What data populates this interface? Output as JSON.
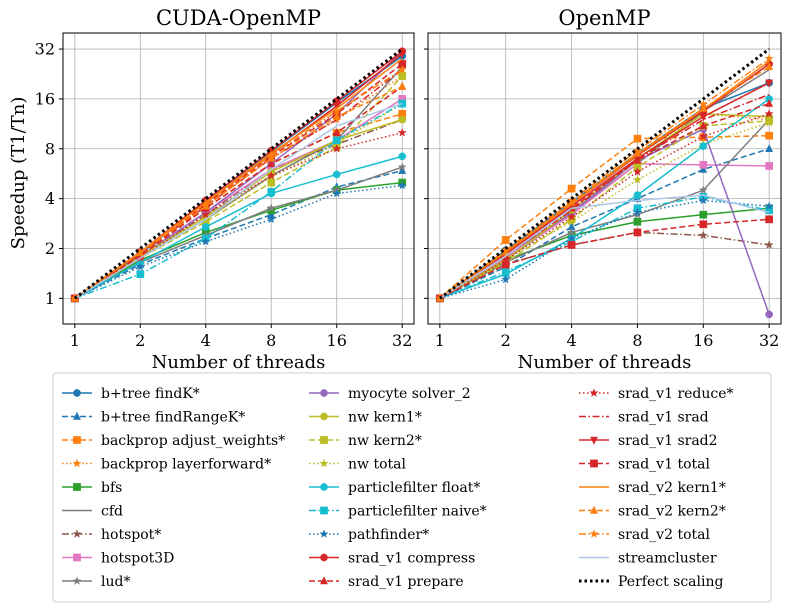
{
  "chart_data": {
    "type": "line",
    "x": [
      1,
      2,
      4,
      8,
      16,
      32
    ],
    "xscale": "log2",
    "yscale": "log2",
    "xticks": [
      "1",
      "2",
      "4",
      "8",
      "16",
      "32"
    ],
    "yticks": [
      "1",
      "2",
      "4",
      "8",
      "16",
      "32"
    ],
    "ylim": [
      0.7,
      40
    ],
    "xlabel": "Number of threads",
    "ylabel": "Speedup (T1/Tn)",
    "grid": true,
    "legend_position": "bottom",
    "panels": [
      {
        "title": "CUDA-OpenMP"
      },
      {
        "title": "OpenMP"
      }
    ],
    "series": [
      {
        "name": "b+tree findK*",
        "color": "#1f77b4",
        "dash": "solid",
        "marker": "circle",
        "values": [
          [
            1,
            1.85,
            3.9,
            7.7,
            15.2,
            29
          ],
          [
            1,
            1.95,
            3.8,
            7.5,
            14,
            20
          ]
        ]
      },
      {
        "name": "b+tree findRangeK*",
        "color": "#1f77b4",
        "dash": "dashed",
        "marker": "triangle-up",
        "values": [
          [
            1,
            1.6,
            2.3,
            3.2,
            4.7,
            5.9
          ],
          [
            1,
            1.55,
            2.7,
            4,
            6,
            8
          ]
        ]
      },
      {
        "name": "backprop adjust_weights*",
        "color": "#ff7f0e",
        "dash": "dashed",
        "marker": "square",
        "values": [
          [
            1,
            1.85,
            3.5,
            6.5,
            10,
            13
          ],
          [
            1,
            2.25,
            4.6,
            9.2,
            9.4,
            9.6
          ]
        ]
      },
      {
        "name": "backprop layerforward*",
        "color": "#ff7f0e",
        "dash": "dotted",
        "marker": "star",
        "values": [
          [
            1,
            1.9,
            3.6,
            7,
            12,
            22
          ],
          [
            1,
            1.9,
            3.7,
            7.5,
            13,
            12
          ]
        ]
      },
      {
        "name": "bfs",
        "color": "#2ca02c",
        "dash": "solid",
        "marker": "square",
        "values": [
          [
            1,
            1.7,
            2.5,
            3.4,
            4.5,
            5
          ]
        ],
        "values_openmp": [
          1,
          1.7,
          2.4,
          2.9,
          3.2,
          3.5
        ]
      },
      {
        "name": "cfd",
        "color": "#7f7f7f",
        "dash": "solid",
        "marker": "none",
        "values": [
          [
            1,
            1.75,
            3,
            5.5,
            9,
            25
          ],
          [
            1,
            1.7,
            3.3,
            6.5,
            13.5,
            24
          ]
        ]
      },
      {
        "name": "hotspot*",
        "color": "#8c564b",
        "dash": "dashdot",
        "marker": "star",
        "values": [
          [
            1,
            1.8,
            3.2,
            6,
            8.5,
            12
          ],
          [
            1,
            1.6,
            2.1,
            2.5,
            2.4,
            2.1
          ]
        ]
      },
      {
        "name": "hotspot3D",
        "color": "#e377c2",
        "dash": "solid",
        "marker": "square",
        "values": [
          [
            1,
            1.8,
            3.3,
            6,
            9,
            16
          ],
          [
            1,
            1.75,
            3.2,
            6.5,
            6.4,
            6.3
          ]
        ]
      },
      {
        "name": "lud*",
        "color": "#7f7f7f",
        "dash": "solid",
        "marker": "star",
        "values": [
          [
            1,
            1.65,
            2.4,
            3.5,
            4.5,
            6.2
          ],
          [
            1,
            1.65,
            2.5,
            3.2,
            4.5,
            12
          ]
        ]
      },
      {
        "name": "myocyte solver_2",
        "color": "#9467bd",
        "dash": "solid",
        "marker": "circle",
        "values": [
          [
            1,
            1.8,
            3.3,
            6.5,
            13,
            31
          ],
          [
            1,
            1.8,
            3.3,
            6.8,
            10.5,
            0.8
          ]
        ]
      },
      {
        "name": "nw kern1*",
        "color": "#bcbd22",
        "dash": "solid",
        "marker": "circle",
        "values": [
          [
            1,
            1.8,
            3.1,
            5.8,
            9,
            12
          ],
          [
            1,
            1.7,
            3.4,
            7,
            13,
            12.5
          ]
        ]
      },
      {
        "name": "nw kern2*",
        "color": "#bcbd22",
        "dash": "dashed",
        "marker": "square",
        "values": [
          [
            1,
            1.75,
            2.9,
            5,
            8.2,
            22
          ],
          [
            1,
            1.65,
            3,
            6.2,
            11,
            11.8
          ]
        ]
      },
      {
        "name": "nw total",
        "color": "#bcbd22",
        "dash": "dotted",
        "marker": "star",
        "values": [
          [
            1,
            1.78,
            3.0,
            5.4,
            8.6,
            15
          ],
          [
            1,
            1.75,
            2.9,
            5.2,
            8.5,
            11.5
          ]
        ]
      },
      {
        "name": "particlefilter float*",
        "color": "#17becf",
        "dash": "solid",
        "marker": "circle",
        "values": [
          [
            1,
            1.65,
            2.7,
            4.3,
            5.6,
            7.2
          ],
          [
            1,
            1.4,
            2.3,
            4.2,
            8.3,
            16
          ]
        ]
      },
      {
        "name": "particlefilter naive*",
        "color": "#17becf",
        "dash": "dashdot",
        "marker": "square",
        "values": [
          [
            1,
            1.4,
            2.3,
            4.4,
            9,
            15
          ],
          [
            1,
            1.45,
            2.2,
            3.5,
            4.1,
            3.4
          ]
        ]
      },
      {
        "name": "pathfinder*",
        "color": "#1f77b4",
        "dash": "dotted",
        "marker": "star",
        "values": [
          [
            1,
            1.55,
            2.2,
            3,
            4.3,
            4.8
          ],
          [
            1,
            1.3,
            2.3,
            3.3,
            3.9,
            3.6
          ]
        ]
      },
      {
        "name": "srad_v1 compress",
        "color": "#d62728",
        "dash": "solid",
        "marker": "circle",
        "values": [
          [
            1,
            1.9,
            3.9,
            7.8,
            15.5,
            31
          ],
          [
            1,
            1.9,
            3.7,
            7.3,
            13.5,
            26
          ]
        ]
      },
      {
        "name": "srad_v1 prepare",
        "color": "#d62728",
        "dash": "dashed",
        "marker": "triangle-up",
        "values": [
          [
            1,
            1.8,
            3.5,
            6.5,
            10,
            19
          ],
          [
            1,
            1.8,
            3.5,
            6.8,
            11,
            15
          ]
        ]
      },
      {
        "name": "srad_v1 reduce*",
        "color": "#d62728",
        "dash": "dotted",
        "marker": "star",
        "values": [
          [
            1,
            1.75,
            3.2,
            5.5,
            8,
            10
          ],
          [
            1,
            1.7,
            3.1,
            5.8,
            9.5,
            13
          ]
        ]
      },
      {
        "name": "srad_v1 srad",
        "color": "#d62728",
        "dash": "dashdot",
        "marker": "none",
        "values": [
          [
            1,
            1.85,
            3.6,
            7,
            12,
            24
          ],
          [
            1,
            1.8,
            3.4,
            6.9,
            12,
            17
          ]
        ]
      },
      {
        "name": "srad_v1 srad2",
        "color": "#d62728",
        "dash": "solid",
        "marker": "triangle-down",
        "values": [
          [
            1,
            1.9,
            3.8,
            7.4,
            14.5,
            30
          ],
          [
            1,
            1.85,
            3.6,
            7,
            12.5,
            20
          ]
        ]
      },
      {
        "name": "srad_v1 total",
        "color": "#d62728",
        "dash": "dashed",
        "marker": "square",
        "values": [
          [
            1,
            1.85,
            3.7,
            7.2,
            13,
            26
          ],
          [
            1,
            1.6,
            2.1,
            2.5,
            2.8,
            3.0
          ]
        ]
      },
      {
        "name": "srad_v2 kern1*",
        "color": "#ff7f0e",
        "dash": "solid",
        "marker": "none",
        "values": [
          [
            1,
            1.9,
            3.8,
            7.5,
            14,
            28
          ],
          [
            1,
            1.9,
            3.7,
            7.4,
            13.8,
            27
          ]
        ]
      },
      {
        "name": "srad_v2 kern2*",
        "color": "#ff7f0e",
        "dash": "dashed",
        "marker": "triangle-up",
        "values": [
          [
            1,
            1.88,
            3.6,
            7,
            12.5,
            19
          ],
          [
            1,
            1.9,
            3.8,
            7.5,
            14,
            25
          ]
        ]
      },
      {
        "name": "srad_v2 total",
        "color": "#ff7f0e",
        "dash": "dashdot",
        "marker": "star",
        "values": [
          [
            1,
            1.9,
            3.75,
            7.3,
            13.5,
            24
          ],
          [
            1,
            1.95,
            3.9,
            7.8,
            14.8,
            28
          ]
        ]
      },
      {
        "name": "streamcluster",
        "color": "#aec7e8",
        "dash": "solid",
        "marker": "none",
        "values": [
          [
            1,
            1.75,
            3.0,
            6,
            11,
            15
          ],
          [
            1,
            1.8,
            3.5,
            3.9,
            4.2,
            3.3
          ]
        ]
      },
      {
        "name": "Perfect scaling",
        "color": "#000000",
        "dash": "dotted-thick",
        "marker": "none",
        "values": [
          [
            1,
            2,
            4,
            8,
            16,
            32
          ],
          [
            1,
            2,
            4,
            8,
            16,
            32
          ]
        ]
      }
    ]
  }
}
